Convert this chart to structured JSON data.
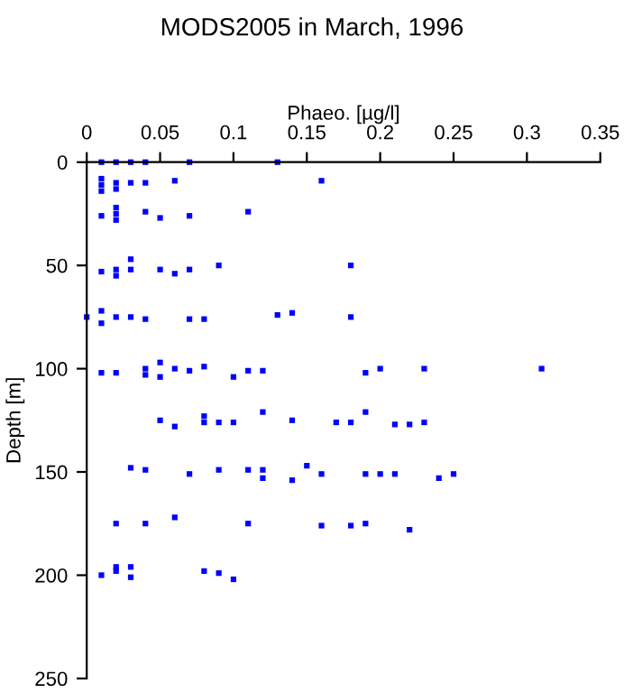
{
  "chart_data": {
    "type": "scatter",
    "title": "MODS2005 in March, 1996",
    "xlabel": "Phaeo. [µg/l]",
    "ylabel": "Depth [m]",
    "xlim": [
      0,
      0.35
    ],
    "xticks": [
      0,
      0.05,
      0.1,
      0.15,
      0.2,
      0.25,
      0.3,
      0.35
    ],
    "ylim": [
      250,
      0
    ],
    "yticks": [
      0,
      50,
      100,
      150,
      200,
      250
    ],
    "marker": "square",
    "grid": false,
    "series": [
      {
        "color": "#0000ff",
        "x": [
          0.01,
          0.02,
          0.03,
          0.04,
          0.07,
          0.13,
          0.01,
          0.01,
          0.01,
          0.02,
          0.02,
          0.03,
          0.04,
          0.06,
          0.16,
          0.01,
          0.02,
          0.02,
          0.02,
          0.04,
          0.05,
          0.07,
          0.11,
          0.01,
          0.02,
          0.02,
          0.03,
          0.03,
          0.05,
          0.06,
          0.07,
          0.09,
          0.18,
          0,
          0.01,
          0.01,
          0.02,
          0.03,
          0.04,
          0.07,
          0.08,
          0.13,
          0.14,
          0.18,
          0.01,
          0.02,
          0.04,
          0.04,
          0.05,
          0.05,
          0.06,
          0.07,
          0.08,
          0.1,
          0.11,
          0.12,
          0.19,
          0.2,
          0.23,
          0.31,
          0.05,
          0.06,
          0.08,
          0.08,
          0.09,
          0.1,
          0.12,
          0.14,
          0.17,
          0.18,
          0.19,
          0.21,
          0.22,
          0.23,
          0.03,
          0.04,
          0.07,
          0.09,
          0.11,
          0.12,
          0.12,
          0.14,
          0.15,
          0.16,
          0.19,
          0.2,
          0.21,
          0.24,
          0.25,
          0.02,
          0.04,
          0.06,
          0.11,
          0.16,
          0.18,
          0.19,
          0.22,
          0.01,
          0.02,
          0.03,
          0.02,
          0.03,
          0.08,
          0.09,
          0.1
        ],
        "values": [
          0,
          0,
          0,
          0,
          0,
          0,
          8,
          11,
          14,
          10,
          13,
          10,
          10,
          9,
          9,
          26,
          22,
          25,
          28,
          24,
          27,
          26,
          24,
          53,
          52,
          55,
          47,
          52,
          52,
          54,
          52,
          50,
          50,
          75,
          72,
          78,
          75,
          75,
          76,
          76,
          76,
          74,
          73,
          75,
          102,
          102,
          100,
          103,
          97,
          104,
          100,
          101,
          99,
          104,
          101,
          101,
          102,
          100,
          100,
          100,
          125,
          128,
          123,
          126,
          126,
          126,
          121,
          125,
          126,
          126,
          121,
          127,
          127,
          126,
          148,
          149,
          151,
          149,
          149,
          149,
          153,
          154,
          147,
          151,
          151,
          151,
          151,
          153,
          151,
          175,
          175,
          172,
          175,
          176,
          176,
          175,
          178,
          200,
          198,
          201,
          196,
          196,
          198,
          199,
          202
        ]
      }
    ]
  }
}
